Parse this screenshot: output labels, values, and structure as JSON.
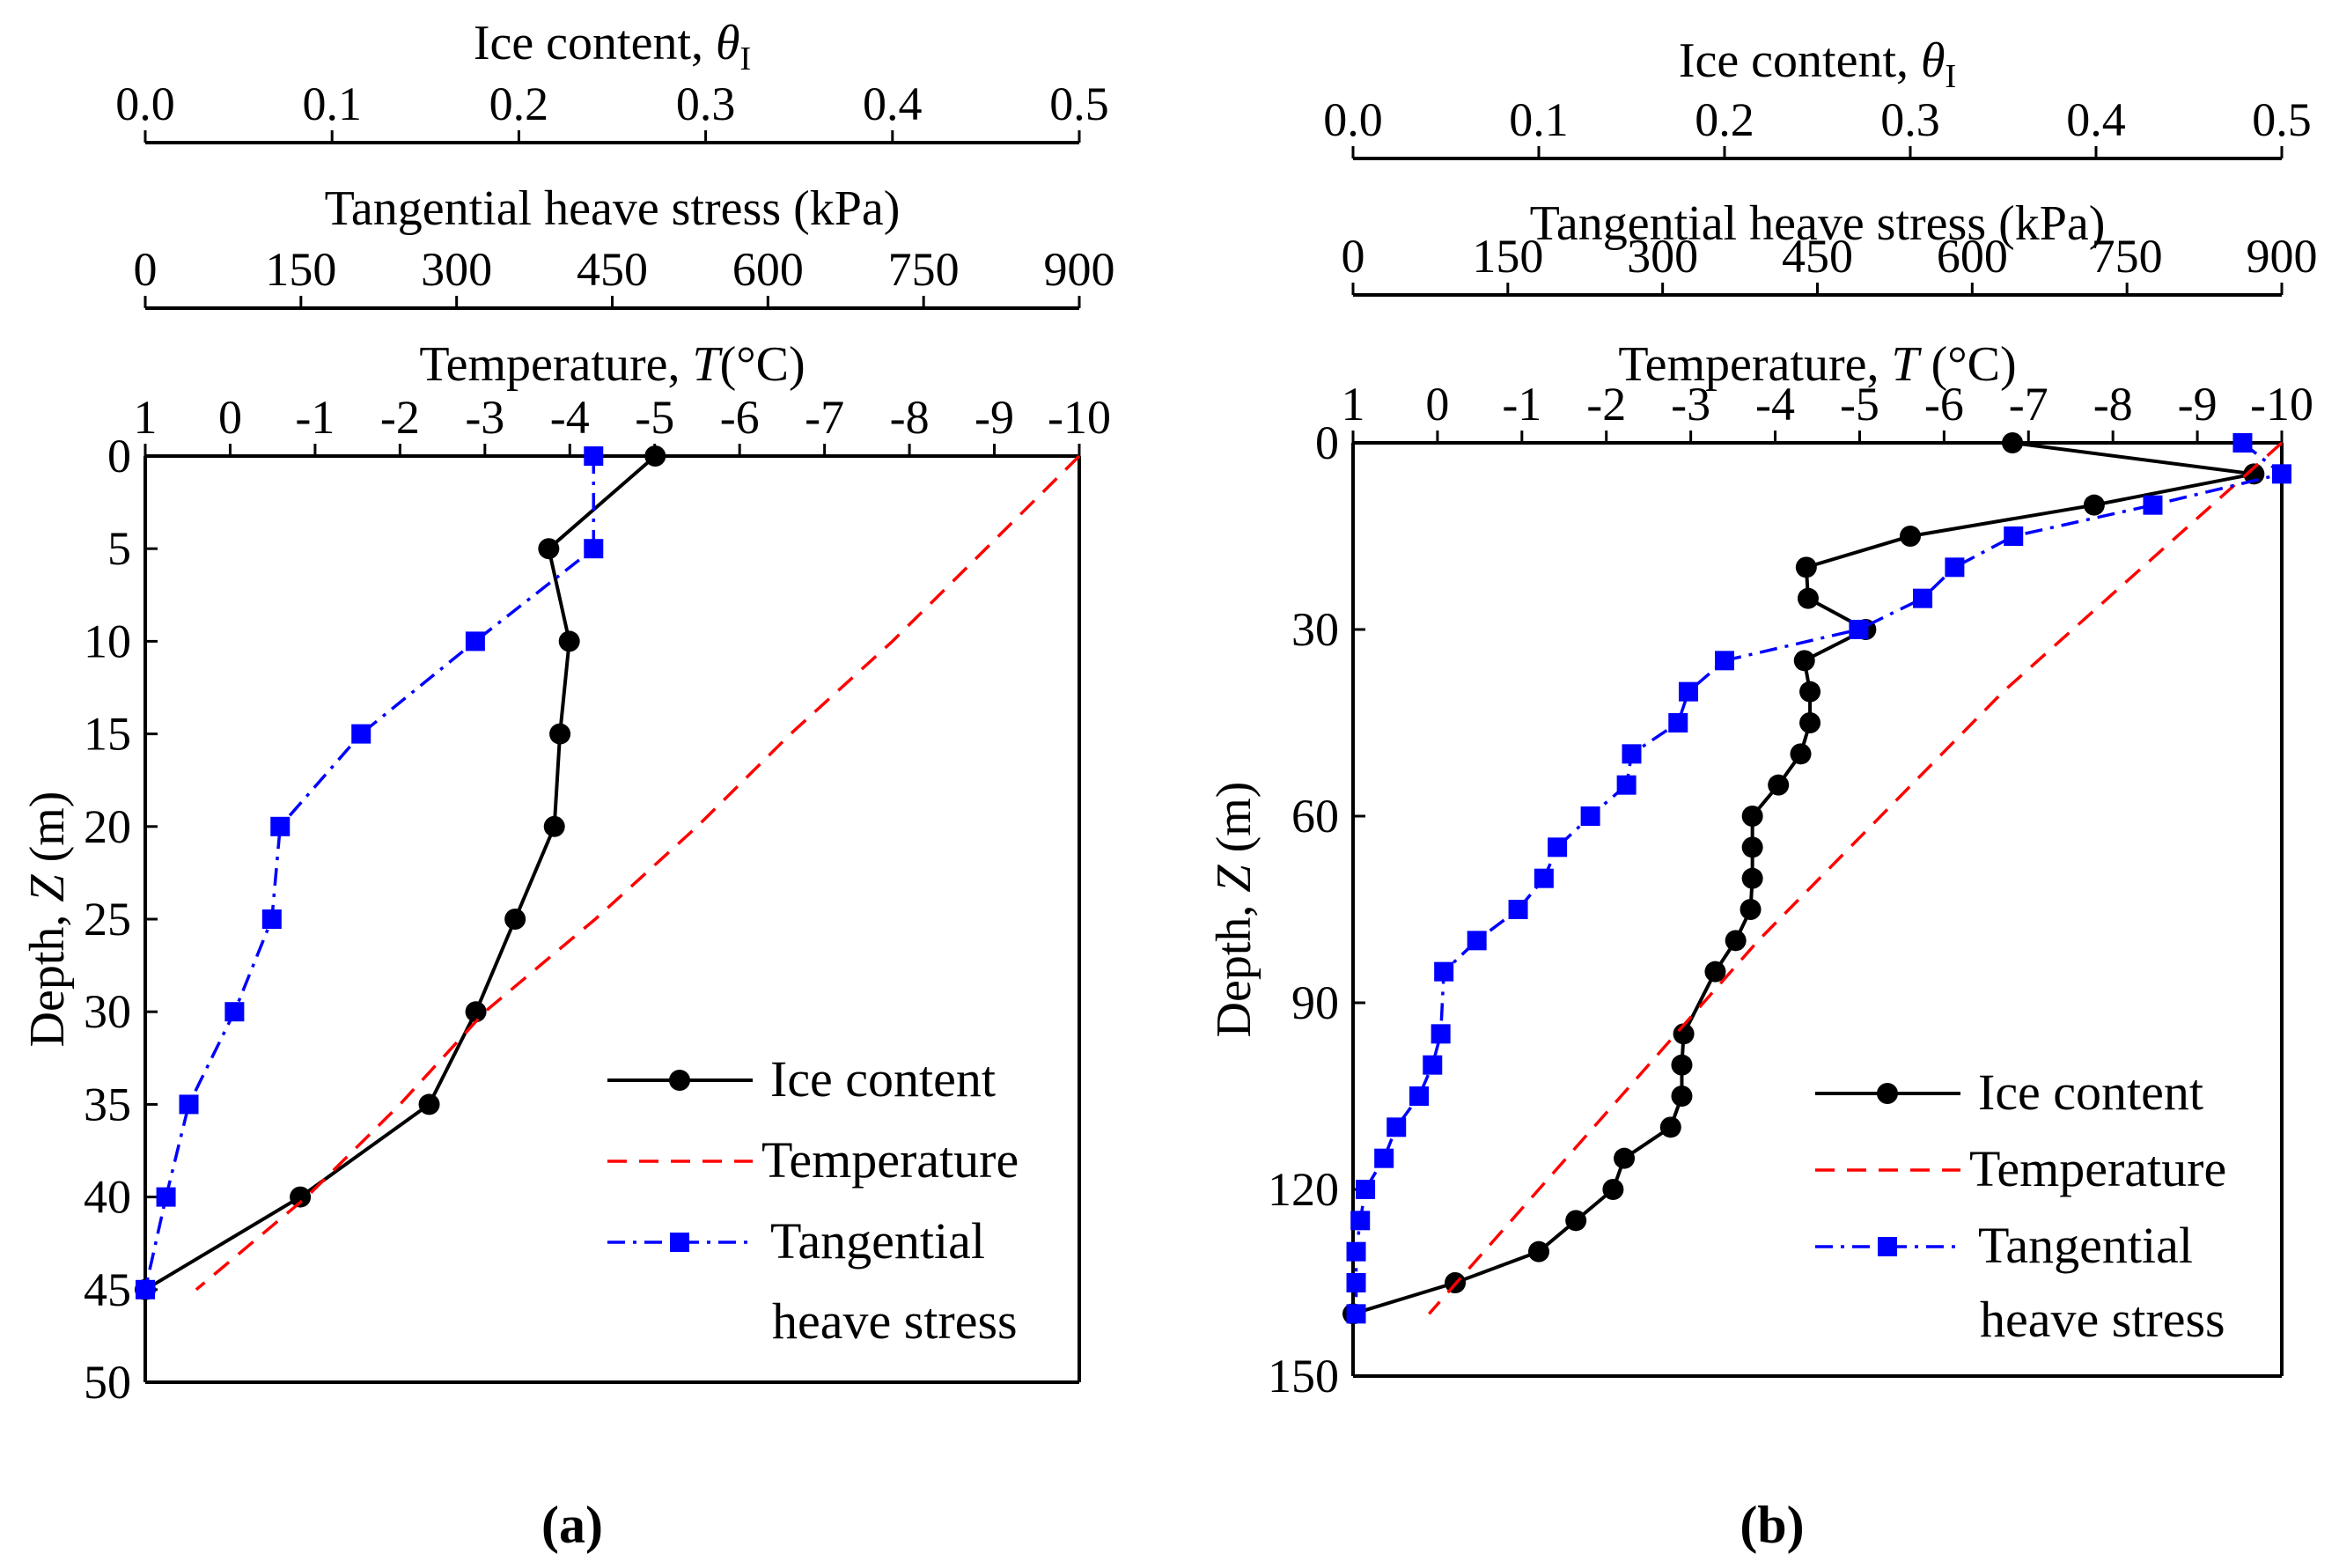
{
  "colors": {
    "ice": "#000000",
    "temperature": "#ff0000",
    "stress": "#0000ff"
  },
  "chart_data": [
    {
      "type": "line",
      "panel_label": "(a)",
      "titles": {
        "ice_prefix": "Ice content, ",
        "ice_symbol": "θ",
        "ice_sub": "I",
        "stress": "Tangential heave stress (kPa)",
        "temp_prefix": "Temperature, ",
        "temp_symbol": "T",
        "temp_suffix": "(°C)",
        "depth_prefix": "Depth, ",
        "depth_symbol": "Z",
        "depth_suffix": " (m)"
      },
      "ice_axis": {
        "range": [
          0,
          0.5
        ],
        "ticks": [
          0,
          0.1,
          0.2,
          0.3,
          0.4,
          0.5
        ],
        "labels": [
          "0.0",
          "0.1",
          "0.2",
          "0.3",
          "0.4",
          "0.5"
        ]
      },
      "stress_axis": {
        "range": [
          0,
          900
        ],
        "ticks": [
          0,
          150,
          300,
          450,
          600,
          750,
          900
        ],
        "labels": [
          "0",
          "150",
          "300",
          "450",
          "600",
          "750",
          "900"
        ]
      },
      "temp_axis": {
        "range": [
          1,
          -10
        ],
        "ticks": [
          1,
          0,
          -1,
          -2,
          -3,
          -4,
          -5,
          -6,
          -7,
          -8,
          -9,
          -10
        ],
        "labels": [
          "1",
          "0",
          "-1",
          "-2",
          "-3",
          "-4",
          "-5",
          "-6",
          "-7",
          "-8",
          "-9",
          "-10"
        ]
      },
      "depth_axis": {
        "range": [
          0,
          50
        ],
        "ticks": [
          0,
          5,
          10,
          15,
          20,
          25,
          30,
          35,
          40,
          45,
          50
        ],
        "labels": [
          "0",
          "5",
          "10",
          "15",
          "20",
          "25",
          "30",
          "35",
          "40",
          "45",
          "50"
        ]
      },
      "series": [
        {
          "name": "Ice content",
          "axis": "ice",
          "depth": [
            0,
            5,
            10,
            15,
            20,
            25,
            30,
            35,
            40,
            45
          ],
          "values": [
            0.273,
            0.216,
            0.227,
            0.222,
            0.219,
            0.198,
            0.177,
            0.152,
            0.083,
            0.0
          ]
        },
        {
          "name": "Temperature",
          "axis": "temp",
          "depth": [
            0,
            5,
            10,
            15,
            20,
            25,
            30,
            35,
            40,
            45
          ],
          "values": [
            -10,
            -8.9,
            -7.8,
            -6.6,
            -5.5,
            -4.3,
            -3.0,
            -2.0,
            -0.9,
            0.4
          ]
        },
        {
          "name": "Tangential heave stress",
          "axis": "stress",
          "depth": [
            0,
            5,
            10,
            15,
            20,
            25,
            30,
            35,
            40,
            45
          ],
          "values": [
            432,
            432,
            318,
            208,
            130,
            122,
            86,
            42,
            20,
            0
          ]
        }
      ],
      "legend": {
        "ice": "Ice content",
        "temp": "Temperature",
        "stress_line1": "Tangential",
        "stress_line2": "heave stress"
      }
    },
    {
      "type": "line",
      "panel_label": "(b)",
      "titles": {
        "ice_prefix": "Ice content, ",
        "ice_symbol": "θ",
        "ice_sub": "I",
        "stress": "Tangential heave stress (kPa)",
        "temp_prefix": "Temperature, ",
        "temp_symbol": "T",
        "temp_suffix": " (°C)",
        "depth_prefix": "Depth, ",
        "depth_symbol": "Z",
        "depth_suffix": " (m)"
      },
      "ice_axis": {
        "range": [
          0,
          0.5
        ],
        "ticks": [
          0,
          0.1,
          0.2,
          0.3,
          0.4,
          0.5
        ],
        "labels": [
          "0.0",
          "0.1",
          "0.2",
          "0.3",
          "0.4",
          "0.5"
        ]
      },
      "stress_axis": {
        "range": [
          0,
          900
        ],
        "ticks": [
          0,
          150,
          300,
          450,
          600,
          750,
          900
        ],
        "labels": [
          "0",
          "150",
          "300",
          "450",
          "600",
          "750",
          "900"
        ]
      },
      "temp_axis": {
        "range": [
          1,
          -10
        ],
        "ticks": [
          1,
          0,
          -1,
          -2,
          -3,
          -4,
          -5,
          -6,
          -7,
          -8,
          -9,
          -10
        ],
        "labels": [
          "1",
          "0",
          "-1",
          "-2",
          "-3",
          "-4",
          "-5",
          "-6",
          "-7",
          "-8",
          "-9",
          "-10"
        ]
      },
      "depth_axis": {
        "range": [
          0,
          150
        ],
        "ticks": [
          0,
          30,
          60,
          90,
          120,
          150
        ],
        "labels": [
          "0",
          "30",
          "60",
          "90",
          "120",
          "150"
        ]
      },
      "series": [
        {
          "name": "Ice content",
          "axis": "ice",
          "depth": [
            0,
            5,
            10,
            15,
            20,
            25,
            30,
            35,
            40,
            45,
            50,
            55,
            60,
            65,
            70,
            75,
            80,
            85,
            95,
            100,
            105,
            110,
            115,
            120,
            125,
            130,
            135,
            140
          ],
          "values": [
            0.355,
            0.485,
            0.399,
            0.3,
            0.244,
            0.245,
            0.276,
            0.243,
            0.246,
            0.246,
            0.241,
            0.229,
            0.215,
            0.215,
            0.215,
            0.214,
            0.206,
            0.195,
            0.178,
            0.177,
            0.177,
            0.171,
            0.146,
            0.14,
            0.12,
            0.1,
            0.055,
            0.0
          ]
        },
        {
          "name": "Temperature",
          "axis": "temp",
          "depth": [
            0,
            40,
            80,
            120,
            140
          ],
          "values": [
            -10,
            -6.7,
            -3.8,
            -1.2,
            0.1
          ]
        },
        {
          "name": "Tangential heave stress",
          "axis": "stress",
          "depth": [
            0,
            5,
            10,
            15,
            20,
            25,
            30,
            35,
            40,
            45,
            50,
            55,
            60,
            65,
            70,
            75,
            80,
            85,
            95,
            100,
            105,
            110,
            115,
            120,
            125,
            130,
            135,
            140
          ],
          "values": [
            862,
            900,
            775,
            640,
            583,
            552,
            490,
            360,
            325,
            315,
            270,
            265,
            230,
            198,
            185,
            160,
            120,
            88,
            85,
            77,
            64,
            42,
            30,
            12,
            7,
            3,
            3,
            3
          ]
        }
      ],
      "legend": {
        "ice": "Ice content",
        "temp": "Temperature",
        "stress_line1": "Tangential",
        "stress_line2": "heave stress"
      }
    }
  ]
}
